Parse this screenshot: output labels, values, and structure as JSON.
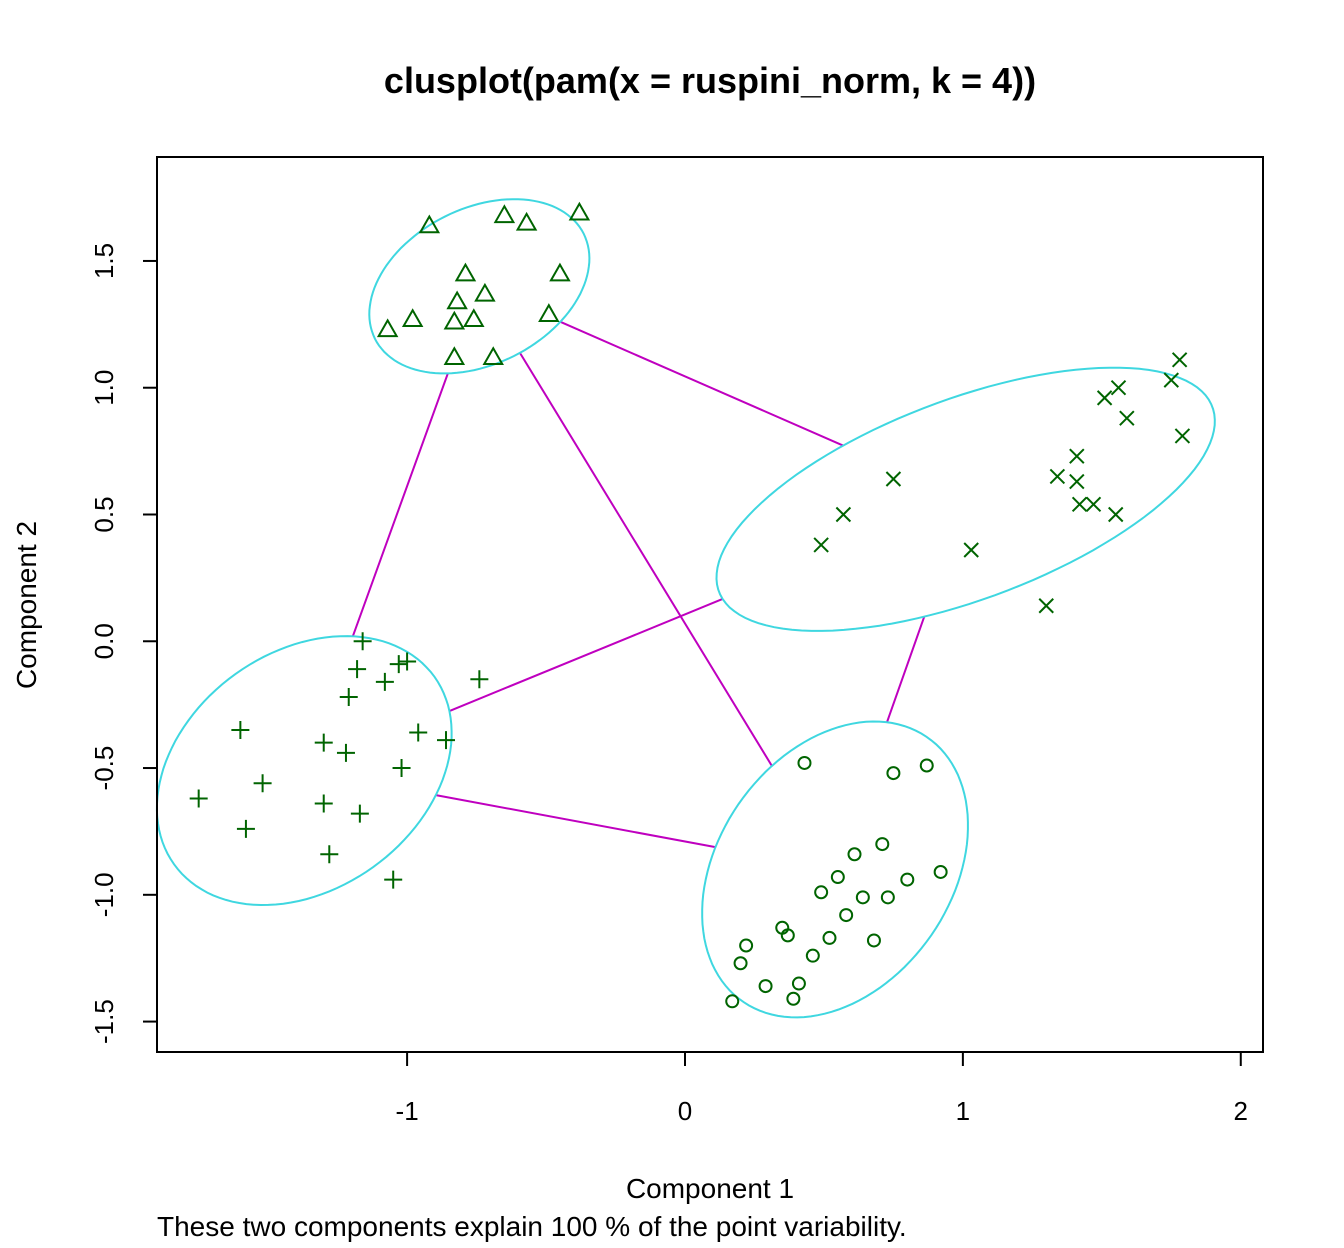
{
  "chart_data": {
    "type": "scatter",
    "title": "clusplot(pam(x = ruspini_norm, k = 4))",
    "xlabel": "Component 1",
    "ylabel": "Component 2",
    "subtitle": "These two components explain 100 % of the point variability.",
    "xlim": [
      -1.9,
      2.08
    ],
    "ylim": [
      -1.62,
      1.91
    ],
    "xticks": [
      -1,
      0,
      1,
      2
    ],
    "xtick_labels": [
      "-1",
      "0",
      "1",
      "2"
    ],
    "yticks": [
      -1.5,
      -1.0,
      -0.5,
      0.0,
      0.5,
      1.0,
      1.5
    ],
    "ytick_labels": [
      "-1.5",
      "-1.0",
      "-0.5",
      "0.0",
      "0.5",
      "1.0",
      "1.5"
    ],
    "colors": {
      "points": "#006400",
      "ellipse": "#3FD7E0",
      "lines": "#BF00BF",
      "frame": "#000000"
    },
    "clusters": [
      {
        "symbol": "circle",
        "ellipse": {
          "cx": 0.54,
          "cy": -0.9,
          "a": 0.62,
          "b": 0.43,
          "angle_deg": 62
        },
        "points": [
          [
            0.43,
            -0.48
          ],
          [
            0.75,
            -0.52
          ],
          [
            0.87,
            -0.49
          ],
          [
            0.71,
            -0.8
          ],
          [
            0.61,
            -0.84
          ],
          [
            0.55,
            -0.93
          ],
          [
            0.49,
            -0.99
          ],
          [
            0.8,
            -0.94
          ],
          [
            0.92,
            -0.91
          ],
          [
            0.64,
            -1.01
          ],
          [
            0.73,
            -1.01
          ],
          [
            0.58,
            -1.08
          ],
          [
            0.52,
            -1.17
          ],
          [
            0.35,
            -1.13
          ],
          [
            0.37,
            -1.16
          ],
          [
            0.22,
            -1.2
          ],
          [
            0.2,
            -1.27
          ],
          [
            0.46,
            -1.24
          ],
          [
            0.68,
            -1.18
          ],
          [
            0.29,
            -1.36
          ],
          [
            0.41,
            -1.35
          ],
          [
            0.39,
            -1.41
          ],
          [
            0.17,
            -1.42
          ]
        ]
      },
      {
        "symbol": "triangle",
        "ellipse": {
          "cx": -0.74,
          "cy": 1.4,
          "a": 0.43,
          "b": 0.3,
          "angle_deg": 33
        },
        "points": [
          [
            -0.65,
            1.68
          ],
          [
            -0.57,
            1.65
          ],
          [
            -0.38,
            1.69
          ],
          [
            -0.92,
            1.64
          ],
          [
            -0.79,
            1.45
          ],
          [
            -0.45,
            1.45
          ],
          [
            -0.72,
            1.37
          ],
          [
            -0.82,
            1.34
          ],
          [
            -0.49,
            1.29
          ],
          [
            -0.76,
            1.27
          ],
          [
            -0.83,
            1.26
          ],
          [
            -0.98,
            1.27
          ],
          [
            -1.07,
            1.23
          ],
          [
            -0.83,
            1.12
          ],
          [
            -0.69,
            1.12
          ]
        ]
      },
      {
        "symbol": "x",
        "ellipse": {
          "cx": 1.01,
          "cy": 0.56,
          "a": 0.96,
          "b": 0.39,
          "angle_deg": 23
        },
        "points": [
          [
            1.78,
            1.11
          ],
          [
            1.75,
            1.03
          ],
          [
            1.56,
            1.0
          ],
          [
            1.51,
            0.96
          ],
          [
            1.59,
            0.88
          ],
          [
            1.79,
            0.81
          ],
          [
            1.41,
            0.73
          ],
          [
            1.34,
            0.65
          ],
          [
            0.75,
            0.64
          ],
          [
            1.41,
            0.63
          ],
          [
            1.42,
            0.54
          ],
          [
            1.47,
            0.54
          ],
          [
            1.55,
            0.5
          ],
          [
            0.57,
            0.5
          ],
          [
            0.49,
            0.38
          ],
          [
            1.03,
            0.36
          ],
          [
            1.3,
            0.14
          ]
        ]
      },
      {
        "symbol": "plus",
        "ellipse": {
          "cx": -1.37,
          "cy": -0.51,
          "a": 0.6,
          "b": 0.45,
          "angle_deg": 45
        },
        "points": [
          [
            -1.16,
            0.0
          ],
          [
            -1.0,
            -0.08
          ],
          [
            -1.03,
            -0.09
          ],
          [
            -1.18,
            -0.11
          ],
          [
            -1.08,
            -0.16
          ],
          [
            -0.74,
            -0.15
          ],
          [
            -1.21,
            -0.22
          ],
          [
            -1.6,
            -0.35
          ],
          [
            -0.96,
            -0.36
          ],
          [
            -0.86,
            -0.39
          ],
          [
            -1.3,
            -0.4
          ],
          [
            -1.22,
            -0.44
          ],
          [
            -1.02,
            -0.5
          ],
          [
            -1.52,
            -0.56
          ],
          [
            -1.75,
            -0.62
          ],
          [
            -1.3,
            -0.64
          ],
          [
            -1.17,
            -0.68
          ],
          [
            -1.58,
            -0.74
          ],
          [
            -1.28,
            -0.84
          ],
          [
            -1.05,
            -0.94
          ]
        ]
      }
    ],
    "connections": [
      [
        0,
        1
      ],
      [
        0,
        2
      ],
      [
        0,
        3
      ],
      [
        1,
        2
      ],
      [
        1,
        3
      ],
      [
        2,
        3
      ]
    ]
  }
}
